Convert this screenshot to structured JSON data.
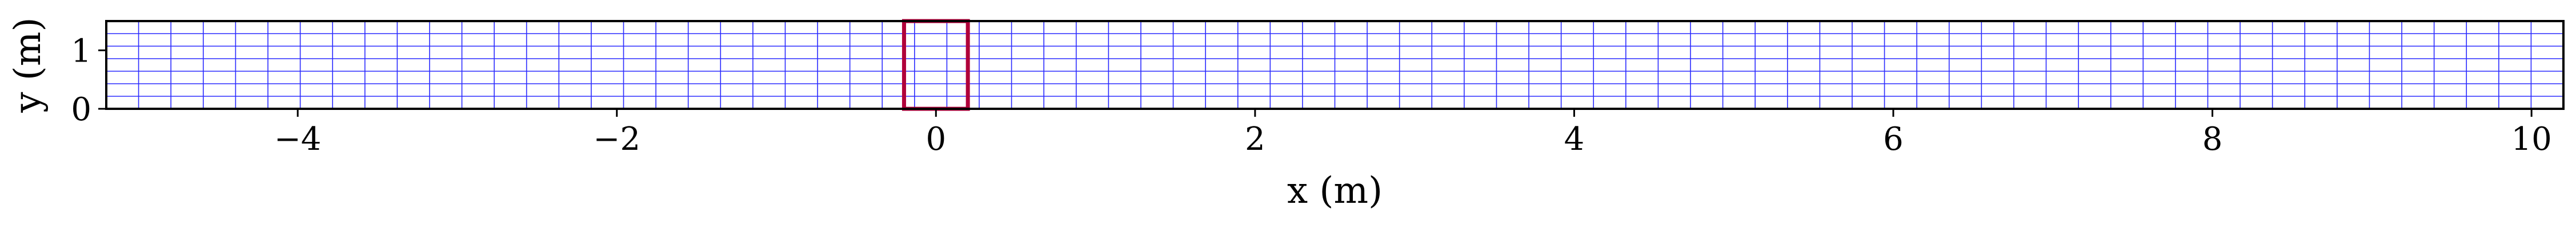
{
  "chart_data": {
    "type": "mesh",
    "title": "",
    "xlabel": "x (m)",
    "ylabel": "y (m)",
    "xlim": [
      -5.2,
      10.2
    ],
    "ylim": [
      0,
      1.5
    ],
    "x_ticks": [
      {
        "value": -4,
        "label": "−4"
      },
      {
        "value": -2,
        "label": "−2"
      },
      {
        "value": 0,
        "label": "0"
      },
      {
        "value": 2,
        "label": "2"
      },
      {
        "value": 4,
        "label": "4"
      },
      {
        "value": 6,
        "label": "6"
      },
      {
        "value": 8,
        "label": "8"
      },
      {
        "value": 10,
        "label": "10"
      }
    ],
    "y_ticks": [
      {
        "value": 0,
        "label": "0"
      },
      {
        "value": 1,
        "label": "1"
      }
    ],
    "grid": {
      "x_range": [
        -5.2,
        10.2
      ],
      "y_range": [
        0,
        1.5
      ],
      "nx": 76,
      "ny": 7,
      "color": "#2b2bff"
    },
    "highlight_rect": {
      "x": [
        -0.2,
        0.2
      ],
      "y": [
        0,
        1.5
      ],
      "color": "#b0003a"
    }
  }
}
